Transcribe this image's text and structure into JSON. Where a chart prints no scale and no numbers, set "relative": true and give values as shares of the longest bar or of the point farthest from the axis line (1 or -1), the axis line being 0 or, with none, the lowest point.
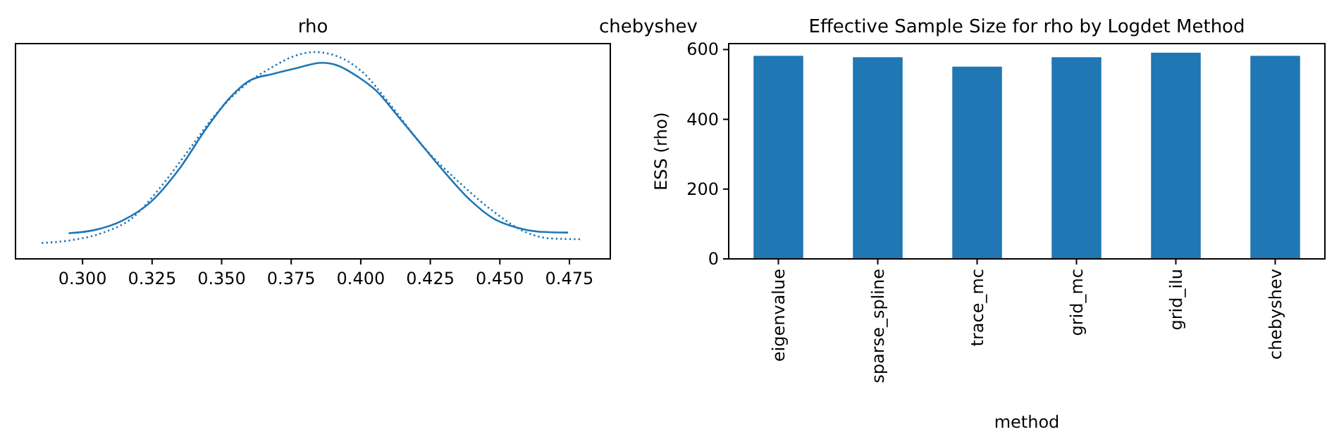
{
  "chart_data": [
    {
      "type": "line",
      "title": "rho",
      "relative": true,
      "tick_labels": "x",
      "xlim": [
        0.2759,
        0.4897
      ],
      "xticks": [
        {
          "value": 0.3,
          "label": "0.300"
        },
        {
          "value": 0.325,
          "label": "0.325"
        },
        {
          "value": 0.35,
          "label": "0.350"
        },
        {
          "value": 0.375,
          "label": "0.375"
        },
        {
          "value": 0.4,
          "label": "0.400"
        },
        {
          "value": 0.425,
          "label": "0.425"
        },
        {
          "value": 0.45,
          "label": "0.450"
        },
        {
          "value": 0.475,
          "label": "0.475"
        }
      ],
      "annotations": [
        "chebyshev"
      ],
      "series": [
        {
          "color": "#1f77b4",
          "line_style": "solid",
          "x": [
            0.295,
            0.3042,
            0.3143,
            0.3245,
            0.3346,
            0.3447,
            0.3531,
            0.3599,
            0.3683,
            0.3768,
            0.386,
            0.3919,
            0.3987,
            0.4054,
            0.4139,
            0.4223,
            0.4307,
            0.4392,
            0.4476,
            0.4561,
            0.4645,
            0.4745
          ],
          "values": [
            0.124,
            0.139,
            0.185,
            0.275,
            0.432,
            0.635,
            0.781,
            0.861,
            0.894,
            0.922,
            0.948,
            0.934,
            0.883,
            0.815,
            0.681,
            0.545,
            0.41,
            0.286,
            0.196,
            0.151,
            0.131,
            0.127
          ]
        },
        {
          "color": "#1f77b4",
          "line_style": "dotted",
          "x": [
            0.2853,
            0.2958,
            0.3076,
            0.3177,
            0.3278,
            0.338,
            0.3481,
            0.3582,
            0.3683,
            0.3768,
            0.3835,
            0.3919,
            0.4004,
            0.4105,
            0.4223,
            0.4358,
            0.4476,
            0.4595,
            0.4679,
            0.4797
          ],
          "values": [
            0.077,
            0.09,
            0.128,
            0.196,
            0.343,
            0.523,
            0.703,
            0.838,
            0.928,
            0.984,
            1,
            0.978,
            0.906,
            0.748,
            0.545,
            0.365,
            0.23,
            0.128,
            0.099,
            0.095
          ]
        }
      ]
    },
    {
      "type": "bar",
      "title": "Effective Sample Size for rho by Logdet Method",
      "xlabel": "method",
      "ylabel": "ESS (rho)",
      "categories": [
        "eigenvalue",
        "sparse_spline",
        "trace_mc",
        "grid_mc",
        "grid_ilu",
        "chebyshev"
      ],
      "values": [
        582,
        578,
        551,
        578,
        591,
        582
      ],
      "color": "#1f77b4",
      "ylim": [
        0,
        617
      ],
      "yticks": [
        0,
        200,
        400,
        600
      ]
    }
  ]
}
